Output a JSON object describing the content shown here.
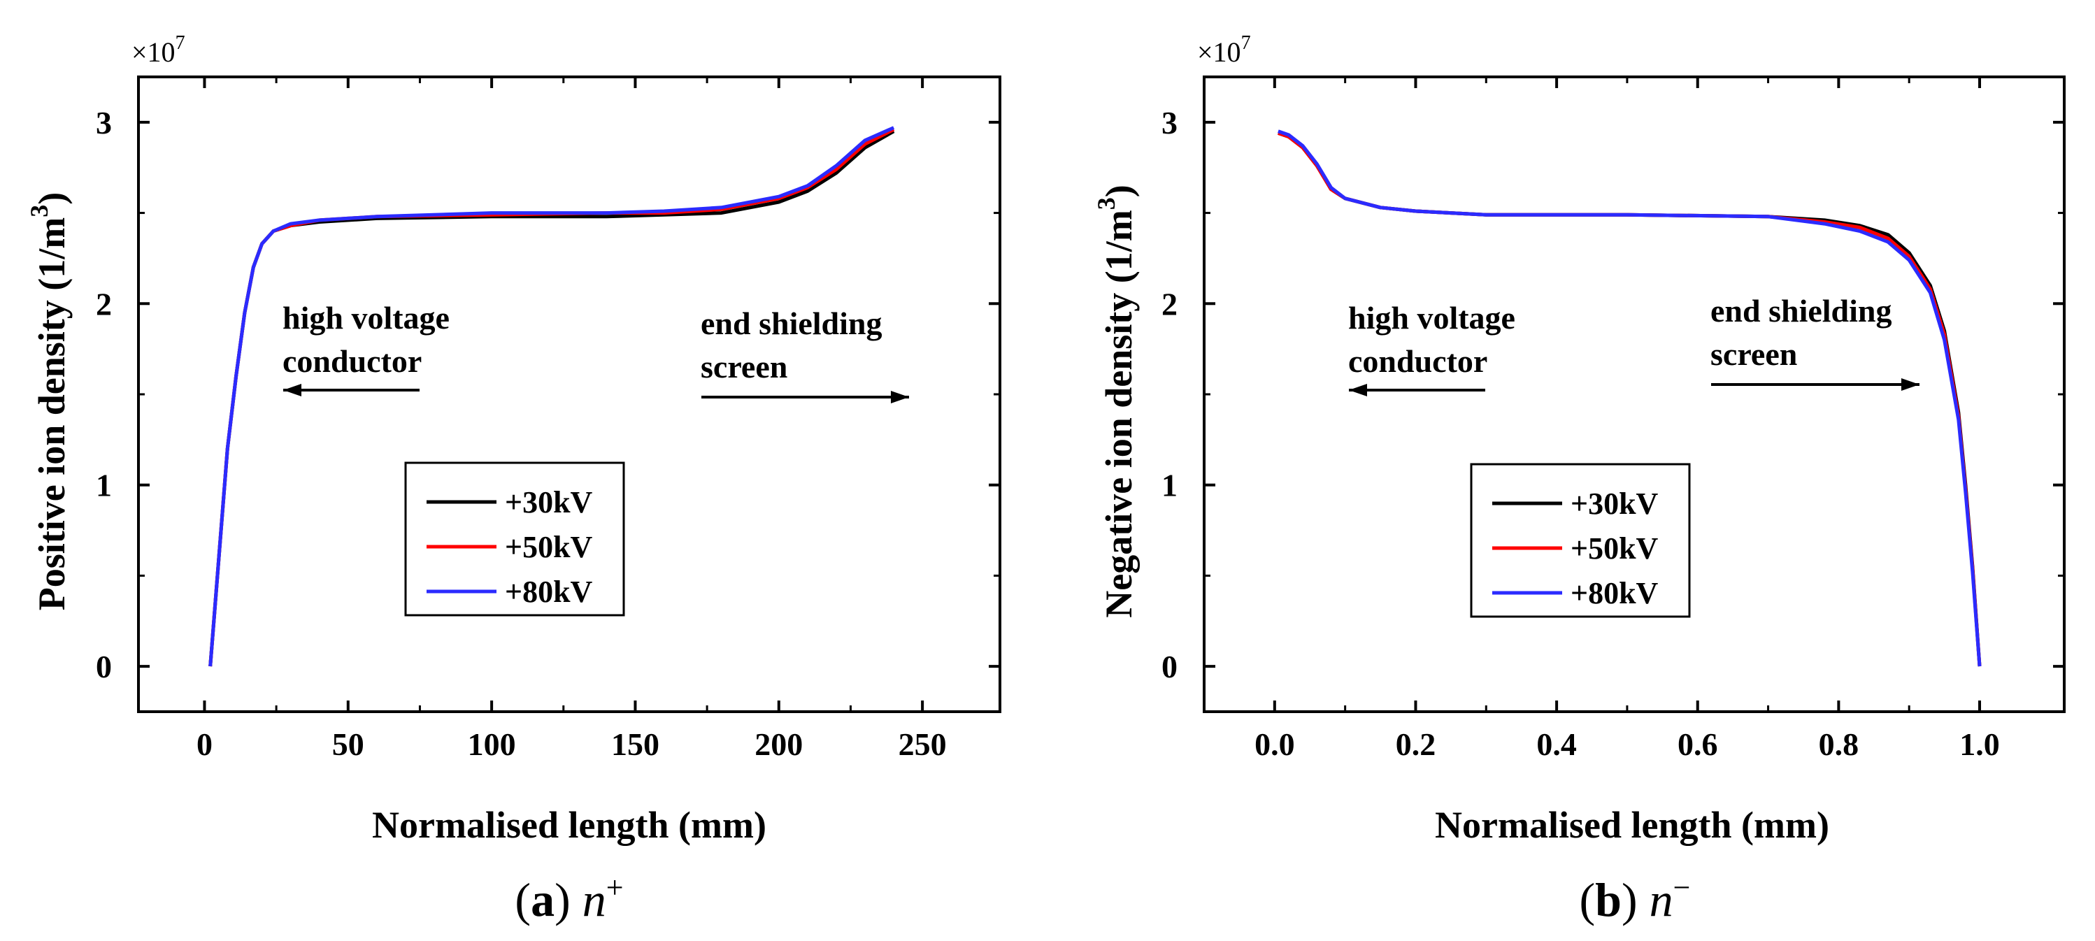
{
  "chart_data": [
    {
      "type": "line",
      "panel_label": "(a)",
      "caption_letter": "a",
      "caption_symbol": "n",
      "caption_sup": "+",
      "xlabel": "Normalised length (mm)",
      "ylabel_main": "Positive ion density (1/m",
      "ylabel_sup": "3",
      "ylabel_close": ")",
      "multiplier_base": "×10",
      "multiplier_exp": "7",
      "xlim": [
        -23,
        277
      ],
      "ylim": [
        -0.25,
        3.25
      ],
      "xticks": [
        0,
        50,
        100,
        150,
        200,
        250
      ],
      "xtick_labels": [
        "0",
        "50",
        "100",
        "150",
        "200",
        "250"
      ],
      "yticks": [
        0,
        1,
        2,
        3
      ],
      "ytick_labels": [
        "0",
        "1",
        "2",
        "3"
      ],
      "annotations": [
        {
          "lines": [
            "high voltage",
            "conductor"
          ],
          "direction": "left"
        },
        {
          "lines": [
            "end shielding",
            "screen"
          ],
          "direction": "right"
        }
      ],
      "legend": {
        "position": "center"
      },
      "series": [
        {
          "name": "+30kV",
          "color": "#000000",
          "x": [
            2,
            5,
            8,
            11,
            14,
            17,
            20,
            24,
            30,
            40,
            60,
            100,
            140,
            160,
            180,
            200,
            210,
            220,
            230,
            240
          ],
          "y": [
            0,
            0.6,
            1.2,
            1.6,
            1.95,
            2.2,
            2.33,
            2.4,
            2.43,
            2.45,
            2.47,
            2.48,
            2.48,
            2.49,
            2.5,
            2.56,
            2.62,
            2.72,
            2.86,
            2.95
          ]
        },
        {
          "name": "+50kV",
          "color": "#ff0000",
          "x": [
            2,
            5,
            8,
            11,
            14,
            17,
            20,
            24,
            30,
            40,
            60,
            100,
            140,
            160,
            180,
            200,
            210,
            220,
            230,
            240
          ],
          "y": [
            0,
            0.6,
            1.2,
            1.6,
            1.95,
            2.2,
            2.33,
            2.4,
            2.43,
            2.46,
            2.48,
            2.49,
            2.5,
            2.5,
            2.52,
            2.58,
            2.64,
            2.74,
            2.88,
            2.96
          ]
        },
        {
          "name": "+80kV",
          "color": "#2b2bff",
          "x": [
            2,
            5,
            8,
            11,
            14,
            17,
            20,
            24,
            30,
            40,
            60,
            100,
            140,
            160,
            180,
            200,
            210,
            220,
            230,
            240
          ],
          "y": [
            0,
            0.6,
            1.2,
            1.6,
            1.95,
            2.2,
            2.33,
            2.4,
            2.44,
            2.46,
            2.48,
            2.5,
            2.5,
            2.51,
            2.53,
            2.59,
            2.65,
            2.76,
            2.9,
            2.97
          ]
        }
      ]
    },
    {
      "type": "line",
      "panel_label": "(b)",
      "caption_letter": "b",
      "caption_symbol": "n",
      "caption_sup": "−",
      "xlabel": "Normalised length (mm)",
      "ylabel_main": "Negative ion density (1/m",
      "ylabel_sup": "3",
      "ylabel_close": ")",
      "multiplier_base": "×10",
      "multiplier_exp": "7",
      "xlim": [
        -0.1,
        1.12
      ],
      "ylim": [
        -0.25,
        3.25
      ],
      "xticks": [
        0,
        0.2,
        0.4,
        0.6,
        0.8,
        1.0
      ],
      "xtick_labels": [
        "0.0",
        "0.2",
        "0.4",
        "0.6",
        "0.8",
        "1.0"
      ],
      "yticks": [
        0,
        1,
        2,
        3
      ],
      "ytick_labels": [
        "0",
        "1",
        "2",
        "3"
      ],
      "annotations": [
        {
          "lines": [
            "high voltage",
            "conductor"
          ],
          "direction": "left"
        },
        {
          "lines": [
            "end shielding",
            "screen"
          ],
          "direction": "right"
        }
      ],
      "legend": {
        "position": "center"
      },
      "series": [
        {
          "name": "+30kV",
          "color": "#000000",
          "x": [
            0.005,
            0.02,
            0.04,
            0.06,
            0.08,
            0.1,
            0.15,
            0.2,
            0.3,
            0.5,
            0.7,
            0.78,
            0.83,
            0.87,
            0.9,
            0.93,
            0.95,
            0.97,
            0.98,
            0.99,
            1.0
          ],
          "y": [
            2.94,
            2.92,
            2.86,
            2.76,
            2.63,
            2.58,
            2.53,
            2.51,
            2.49,
            2.49,
            2.48,
            2.46,
            2.43,
            2.38,
            2.28,
            2.1,
            1.85,
            1.4,
            1.0,
            0.55,
            0
          ]
        },
        {
          "name": "+50kV",
          "color": "#ff0000",
          "x": [
            0.005,
            0.02,
            0.04,
            0.06,
            0.08,
            0.1,
            0.15,
            0.2,
            0.3,
            0.5,
            0.7,
            0.78,
            0.83,
            0.87,
            0.9,
            0.93,
            0.95,
            0.97,
            0.98,
            0.99,
            1.0
          ],
          "y": [
            2.94,
            2.92,
            2.86,
            2.76,
            2.63,
            2.58,
            2.53,
            2.51,
            2.49,
            2.49,
            2.48,
            2.45,
            2.42,
            2.36,
            2.26,
            2.08,
            1.83,
            1.38,
            0.98,
            0.54,
            0
          ]
        },
        {
          "name": "+80kV",
          "color": "#2b2bff",
          "x": [
            0.005,
            0.02,
            0.04,
            0.06,
            0.08,
            0.1,
            0.15,
            0.2,
            0.3,
            0.5,
            0.7,
            0.78,
            0.83,
            0.87,
            0.9,
            0.93,
            0.95,
            0.97,
            0.98,
            0.99,
            1.0
          ],
          "y": [
            2.95,
            2.93,
            2.87,
            2.77,
            2.64,
            2.58,
            2.53,
            2.51,
            2.49,
            2.49,
            2.48,
            2.44,
            2.4,
            2.34,
            2.24,
            2.06,
            1.8,
            1.36,
            0.96,
            0.52,
            0
          ]
        }
      ]
    }
  ]
}
